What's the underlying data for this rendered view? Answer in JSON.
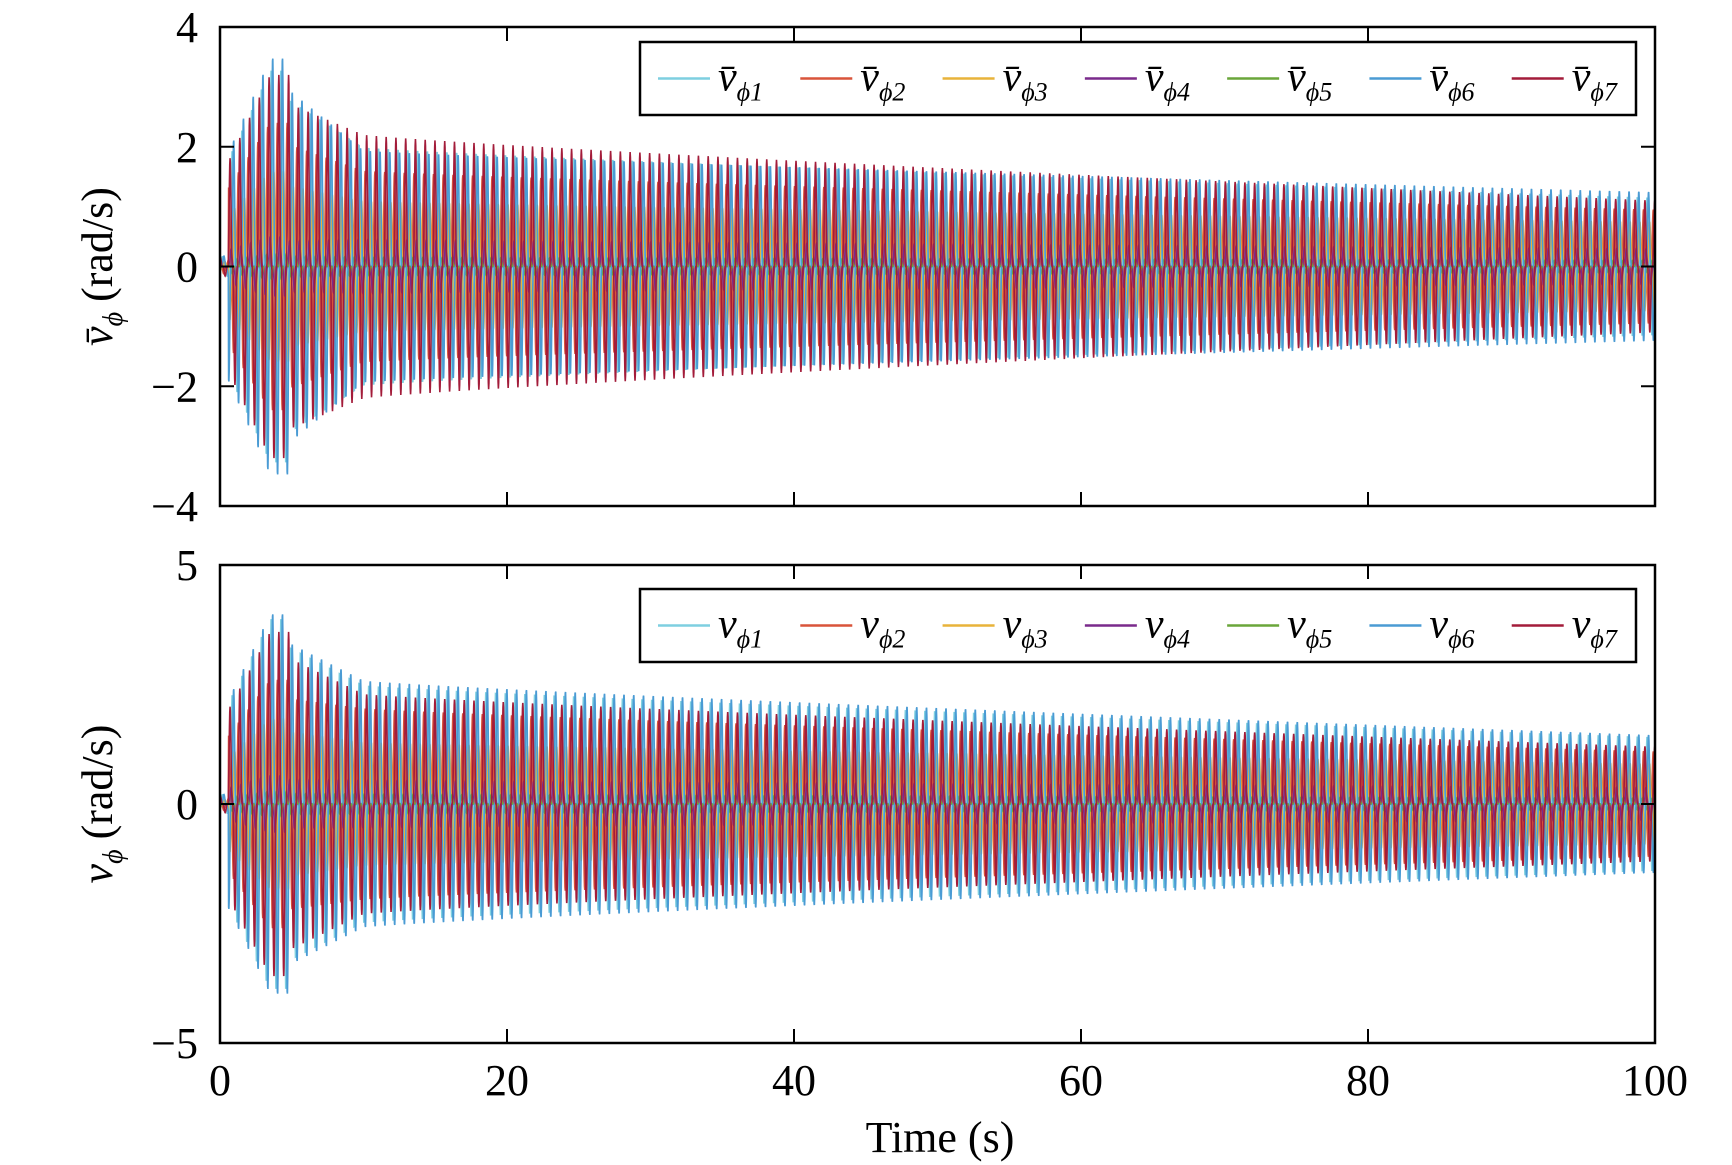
{
  "chart_data": [
    {
      "type": "line",
      "title": "",
      "xlabel": "",
      "ylabel": {
        "symbol": "v̄",
        "subscript": "ϕ",
        "unit": "(rad/s)"
      },
      "xlim": [
        0,
        100
      ],
      "ylim": [
        -4,
        4
      ],
      "yticks": [
        "4",
        "2",
        "0",
        "−2",
        "−4"
      ],
      "ytick_values": [
        4,
        2,
        0,
        -2,
        -4
      ],
      "legend_position": "top-right",
      "series": [
        {
          "name": "v̄ϕ1",
          "symbol": "v̄",
          "sub": "ϕ1",
          "color": "#7ecfe0",
          "envelope": {
            "peak_t": 3.5,
            "peak": 3.3,
            "t10": 2.0,
            "t100": 1.15
          }
        },
        {
          "name": "v̄ϕ2",
          "symbol": "v̄",
          "sub": "ϕ2",
          "color": "#d9543a",
          "envelope": {
            "peak_t": 3.5,
            "peak": 2.4,
            "t10": 1.6,
            "t100": 0.95
          }
        },
        {
          "name": "v̄ϕ3",
          "symbol": "v̄",
          "sub": "ϕ3",
          "color": "#e8b33a",
          "envelope": {
            "peak_t": 3.5,
            "peak": 1.6,
            "t10": 1.1,
            "t100": 0.75
          }
        },
        {
          "name": "v̄ϕ4",
          "symbol": "v̄",
          "sub": "ϕ4",
          "color": "#7a2a8c",
          "envelope": {
            "peak_t": 3.5,
            "peak": 0.5,
            "t10": 0.45,
            "t100": 0.3
          }
        },
        {
          "name": "v̄ϕ5",
          "symbol": "v̄",
          "sub": "ϕ5",
          "color": "#6aa63a",
          "envelope": {
            "peak_t": 3.5,
            "peak": 0.2,
            "t10": 0.15,
            "t100": 0.1
          }
        },
        {
          "name": "v̄ϕ6",
          "symbol": "v̄",
          "sub": "ϕ6",
          "color": "#4a9bd4",
          "envelope": {
            "peak_t": 3.5,
            "peak": 3.5,
            "t10": 1.95,
            "t100": 1.25
          }
        },
        {
          "name": "v̄ϕ7",
          "symbol": "v̄",
          "sub": "ϕ7",
          "color": "#a31c3a",
          "envelope": {
            "peak_t": 3.5,
            "peak": 3.2,
            "t10": 2.2,
            "t100": 1.1
          }
        }
      ]
    },
    {
      "type": "line",
      "title": "",
      "xlabel": "Time (s)",
      "ylabel": {
        "symbol": "v",
        "subscript": "ϕ",
        "unit": "(rad/s)"
      },
      "xlim": [
        0,
        100
      ],
      "ylim": [
        -5,
        5
      ],
      "xticks": [
        "0",
        "20",
        "40",
        "60",
        "80",
        "100"
      ],
      "xtick_values": [
        0,
        20,
        40,
        60,
        80,
        100
      ],
      "yticks": [
        "5",
        "0",
        "−5"
      ],
      "ytick_values": [
        5,
        0,
        -5
      ],
      "legend_position": "top-right",
      "series": [
        {
          "name": "vϕ1",
          "symbol": "v",
          "sub": "ϕ1",
          "color": "#7ecfe0",
          "envelope": {
            "peak_t": 3.5,
            "peak": 3.9,
            "t10": 2.5,
            "t100": 1.4
          }
        },
        {
          "name": "vϕ2",
          "symbol": "v",
          "sub": "ϕ2",
          "color": "#d9543a",
          "envelope": {
            "peak_t": 3.5,
            "peak": 2.6,
            "t10": 2.0,
            "t100": 1.1
          }
        },
        {
          "name": "vϕ3",
          "symbol": "v",
          "sub": "ϕ3",
          "color": "#e8b33a",
          "envelope": {
            "peak_t": 3.5,
            "peak": 1.8,
            "t10": 1.3,
            "t100": 0.85
          }
        },
        {
          "name": "vϕ4",
          "symbol": "v",
          "sub": "ϕ4",
          "color": "#7a2a8c",
          "envelope": {
            "peak_t": 3.5,
            "peak": 0.6,
            "t10": 0.5,
            "t100": 0.35
          }
        },
        {
          "name": "vϕ5",
          "symbol": "v",
          "sub": "ϕ5",
          "color": "#6aa63a",
          "envelope": {
            "peak_t": 3.5,
            "peak": 0.25,
            "t10": 0.2,
            "t100": 0.12
          }
        },
        {
          "name": "vϕ6",
          "symbol": "v",
          "sub": "ϕ6",
          "color": "#4a9bd4",
          "envelope": {
            "peak_t": 3.5,
            "peak": 4.0,
            "t10": 2.6,
            "t100": 1.45
          }
        },
        {
          "name": "vϕ7",
          "symbol": "v",
          "sub": "ϕ7",
          "color": "#a31c3a",
          "envelope": {
            "peak_t": 3.5,
            "peak": 3.6,
            "t10": 2.3,
            "t100": 1.2
          }
        }
      ]
    }
  ]
}
